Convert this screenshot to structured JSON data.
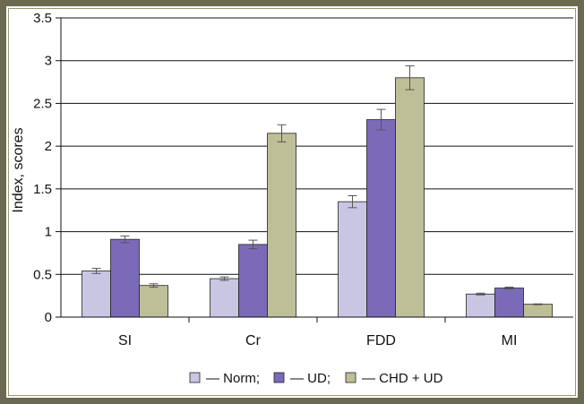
{
  "chart_data": {
    "type": "bar",
    "categories": [
      "SI",
      "Cr",
      "FDD",
      "MI"
    ],
    "series": [
      {
        "name": "— Norm;",
        "color": "#c9c6e4",
        "values": [
          0.54,
          0.45,
          1.35,
          0.27
        ],
        "errors": [
          0.03,
          0.02,
          0.07,
          0.01
        ]
      },
      {
        "name": "— UD;",
        "color": "#7b6ab8",
        "values": [
          0.91,
          0.85,
          2.31,
          0.34
        ],
        "errors": [
          0.04,
          0.05,
          0.12,
          0.01
        ]
      },
      {
        "name": "— CHD + UD",
        "color": "#bfbf97",
        "values": [
          0.37,
          2.15,
          2.8,
          0.15
        ],
        "errors": [
          0.02,
          0.1,
          0.14,
          0.005
        ]
      }
    ],
    "ylabel": "Index, scores",
    "ylim": [
      0,
      3.5
    ],
    "yticks": [
      "0",
      "0.5",
      "1",
      "1.5",
      "2",
      "2.5",
      "3",
      "3.5"
    ],
    "grid": true,
    "legend_position": "bottom"
  }
}
